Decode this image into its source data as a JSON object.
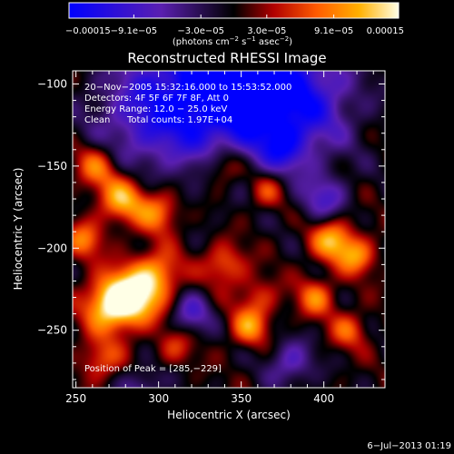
{
  "chart_data": {
    "type": "heatmap",
    "title": "Reconstructed RHESSI Image",
    "xlabel": "Heliocentric X (arcsec)",
    "ylabel": "Heliocentric Y (arcsec)",
    "xlim": [
      248,
      437
    ],
    "ylim": [
      -285,
      -92
    ],
    "x_ticks": [
      250,
      300,
      350,
      400
    ],
    "y_ticks": [
      -100,
      -150,
      -200,
      -250
    ],
    "colorbar": {
      "range": [
        -0.00015,
        0.00015
      ],
      "tick_values": [
        -0.00015,
        -9.1e-05,
        -3e-05,
        3e-05,
        9.1e-05,
        0.00015
      ],
      "tick_labels": [
        "−0.00015",
        "−9.1e−05",
        "−3.0e−05",
        "3.0e−05",
        "9.1e−05",
        "0.00015"
      ],
      "units_label": "(photons cm",
      "units_exp1": "−2",
      "units_mid": " s",
      "units_exp2": "−1",
      "units_end": " asec",
      "units_exp3": "−2",
      "units_close": ")",
      "colors": [
        "#0000ff",
        "#5a1fb0",
        "#000000",
        "#b00000",
        "#ff5a00",
        "#ffb000",
        "#ffffe6"
      ]
    },
    "annotations": {
      "line1": "20−Nov−2005 15:32:16.000 to 15:53:52.000",
      "line2": "Detectors: 4F 5F 6F 7F 8F, Att 0",
      "line3": "Energy Range: 12.0 − 25.0 keV",
      "line4_a": "Clean",
      "line4_b": "Total counts: 1.97E+04",
      "peak": "Position of Peak = [285,−229]"
    },
    "peak_position": [
      285,
      -229
    ],
    "sources": [
      {
        "x": 330,
        "y": -105,
        "amp": -1.0,
        "r": 30
      },
      {
        "x": 380,
        "y": -110,
        "amp": -0.9,
        "r": 25
      },
      {
        "x": 290,
        "y": -120,
        "amp": -0.4,
        "r": 22
      },
      {
        "x": 285,
        "y": -229,
        "amp": 1.0,
        "r": 12
      },
      {
        "x": 270,
        "y": -235,
        "amp": 0.8,
        "r": 11
      },
      {
        "x": 300,
        "y": -215,
        "amp": 0.55,
        "r": 10
      },
      {
        "x": 262,
        "y": -150,
        "amp": 0.55,
        "r": 9
      },
      {
        "x": 278,
        "y": -170,
        "amp": 0.75,
        "r": 10
      },
      {
        "x": 300,
        "y": -178,
        "amp": 0.6,
        "r": 9
      },
      {
        "x": 255,
        "y": -195,
        "amp": 0.55,
        "r": 8
      },
      {
        "x": 340,
        "y": -150,
        "amp": 0.55,
        "r": 9
      },
      {
        "x": 365,
        "y": -165,
        "amp": 0.45,
        "r": 8
      },
      {
        "x": 340,
        "y": -210,
        "amp": 0.5,
        "r": 9
      },
      {
        "x": 360,
        "y": -230,
        "amp": 0.35,
        "r": 9
      },
      {
        "x": 355,
        "y": -248,
        "amp": 0.6,
        "r": 8
      },
      {
        "x": 405,
        "y": -195,
        "amp": 0.75,
        "r": 9
      },
      {
        "x": 420,
        "y": -205,
        "amp": 0.6,
        "r": 8
      },
      {
        "x": 395,
        "y": -230,
        "amp": 0.55,
        "r": 8
      },
      {
        "x": 415,
        "y": -250,
        "amp": 0.45,
        "r": 8
      },
      {
        "x": 265,
        "y": -268,
        "amp": 0.45,
        "r": 9
      },
      {
        "x": 310,
        "y": -260,
        "amp": 0.35,
        "r": 8
      },
      {
        "x": 400,
        "y": -170,
        "amp": -0.5,
        "r": 10
      },
      {
        "x": 320,
        "y": -240,
        "amp": -0.5,
        "r": 9
      },
      {
        "x": 380,
        "y": -270,
        "amp": -0.5,
        "r": 10
      },
      {
        "x": 290,
        "y": -285,
        "amp": -0.4,
        "r": 9
      },
      {
        "x": 375,
        "y": -140,
        "amp": -0.4,
        "r": 9
      }
    ]
  },
  "footer": {
    "date": "6−Jul−2013 01:19"
  }
}
